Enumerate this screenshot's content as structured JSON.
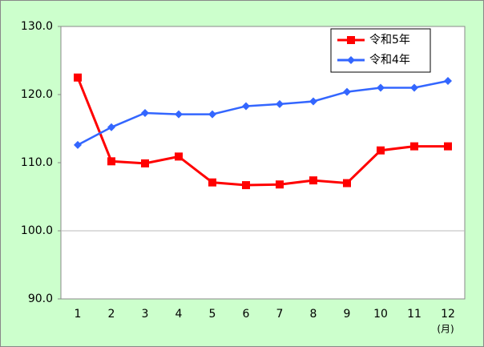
{
  "chart_data": {
    "type": "line",
    "categories": [
      "1",
      "2",
      "3",
      "4",
      "5",
      "6",
      "7",
      "8",
      "9",
      "10",
      "11",
      "12"
    ],
    "x_unit": "(月)",
    "series": [
      {
        "name": "令和5年",
        "color": "#ff0000",
        "marker": "square",
        "values": [
          122.5,
          110.2,
          109.9,
          110.9,
          107.1,
          106.7,
          106.8,
          107.4,
          107.0,
          111.8,
          112.4,
          112.4
        ]
      },
      {
        "name": "令和4年",
        "color": "#3366ff",
        "marker": "diamond",
        "values": [
          112.6,
          115.2,
          117.3,
          117.1,
          117.1,
          118.3,
          118.6,
          119.0,
          120.4,
          121.0,
          121.0,
          122.0
        ]
      }
    ],
    "ylim": [
      90,
      130
    ],
    "yticks": [
      {
        "value": 90,
        "label": "90.0"
      },
      {
        "value": 100,
        "label": "100.0"
      },
      {
        "value": 110,
        "label": "110.0"
      },
      {
        "value": 120,
        "label": "120.0"
      },
      {
        "value": 130,
        "label": "130.0"
      }
    ],
    "reference_line": 100,
    "legend": "top-right"
  }
}
